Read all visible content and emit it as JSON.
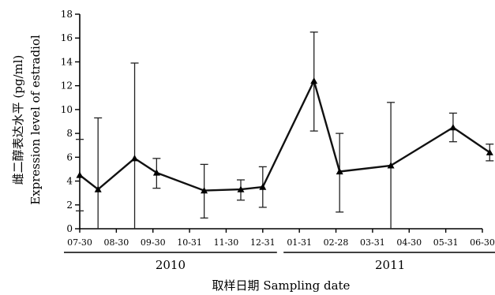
{
  "chart_data": {
    "type": "line",
    "title": "",
    "xlabel": "取样日期 Sampling date",
    "ylabel_lines": [
      "雌二醇表达水平 (pg/ml)",
      "Expression level of estradiol"
    ],
    "ylim": [
      0,
      18
    ],
    "yticks": [
      0,
      2,
      4,
      6,
      8,
      10,
      12,
      14,
      16,
      18
    ],
    "grid": false,
    "legend": "none",
    "xtick_labels": [
      "07-30",
      "08-30",
      "09-30",
      "10-31",
      "11-30",
      "12-31",
      "01-31",
      "02-28",
      "03-31",
      "04-30",
      "05-31",
      "06-30"
    ],
    "year_groups": [
      {
        "label": "2010",
        "from_tick": 0,
        "to_tick": 5
      },
      {
        "label": "2011",
        "from_tick": 6,
        "to_tick": 11
      }
    ],
    "series": [
      {
        "marker": "triangle",
        "x": [
          0,
          0.5,
          1.5,
          2.1,
          3.4,
          4.4,
          5.0,
          6.4,
          7.1,
          8.5,
          10.2,
          11.2
        ],
        "y": [
          4.5,
          3.3,
          5.9,
          4.7,
          3.2,
          3.3,
          3.5,
          12.4,
          4.8,
          5.3,
          8.5,
          6.4
        ],
        "err_low": [
          1.5,
          0,
          0,
          3.4,
          0.9,
          2.4,
          1.8,
          8.2,
          1.4,
          0,
          7.3,
          5.7
        ],
        "err_high": [
          7.5,
          9.3,
          13.9,
          5.9,
          5.4,
          4.1,
          5.2,
          16.5,
          8.0,
          10.6,
          9.7,
          7.1
        ]
      }
    ]
  }
}
